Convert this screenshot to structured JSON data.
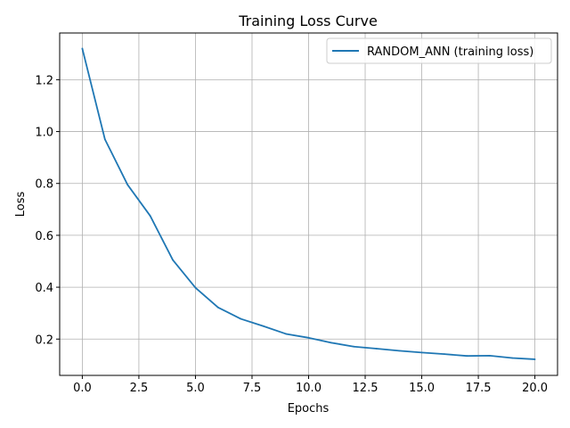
{
  "chart_data": {
    "type": "line",
    "title": "Training Loss Curve",
    "xlabel": "Epochs",
    "ylabel": "Loss",
    "xlim": [
      -1,
      21
    ],
    "ylim": [
      0.06,
      1.38
    ],
    "grid": true,
    "legend_position": "top-right",
    "x_ticks": [
      0.0,
      2.5,
      5.0,
      7.5,
      10.0,
      12.5,
      15.0,
      17.5,
      20.0
    ],
    "x_tick_labels": [
      "0.0",
      "2.5",
      "5.0",
      "7.5",
      "10.0",
      "12.5",
      "15.0",
      "17.5",
      "20.0"
    ],
    "y_ticks": [
      0.2,
      0.4,
      0.6,
      0.8,
      1.0,
      1.2
    ],
    "y_tick_labels": [
      "0.2",
      "0.4",
      "0.6",
      "0.8",
      "1.0",
      "1.2"
    ],
    "series": [
      {
        "name": "RANDOM_ANN (training loss)",
        "color": "#1f77b4",
        "x": [
          0,
          1,
          2,
          3,
          4,
          5,
          6,
          7,
          8,
          9,
          10,
          11,
          12,
          13,
          14,
          15,
          16,
          17,
          18,
          19,
          20
        ],
        "values": [
          1.32,
          0.97,
          0.795,
          0.675,
          0.505,
          0.398,
          0.322,
          0.278,
          0.25,
          0.22,
          0.205,
          0.186,
          0.171,
          0.163,
          0.155,
          0.148,
          0.142,
          0.135,
          0.136,
          0.127,
          0.122
        ]
      }
    ]
  }
}
